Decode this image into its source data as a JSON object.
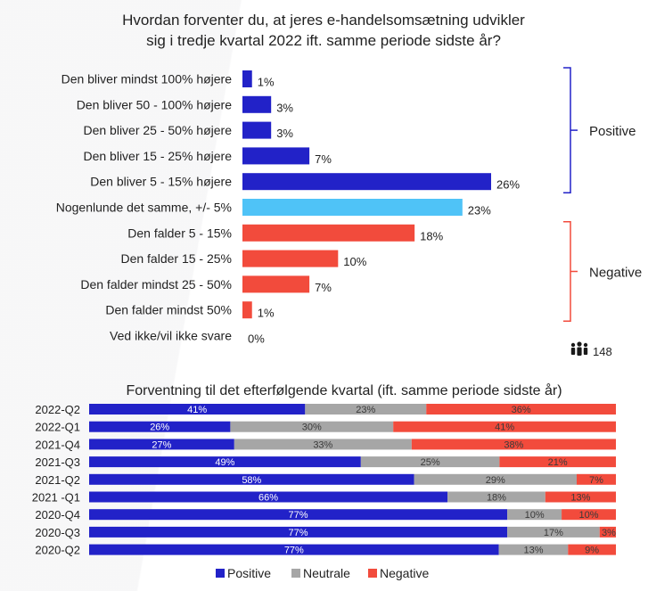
{
  "colors": {
    "positive": "#2222c8",
    "neutral_same": "#4fc3f7",
    "negative": "#f24b3c",
    "neutral_grey": "#a6a6a6",
    "bracket": "#2222c8",
    "bracket_neg": "#f24b3c",
    "text": "#222222"
  },
  "respondents": {
    "icon": "people-icon",
    "count": "148"
  },
  "chart_data": [
    {
      "type": "bar",
      "orientation": "horizontal",
      "title": "Hvordan forventer du, at jeres e-handelsomsætning udvikler sig i tredje kvartal 2022 ift. samme periode sidste år?",
      "title_lines": [
        "Hvordan forventer du, at jeres e-handelsomsætning udvikler",
        "sig i tredje kvartal 2022 ift. samme periode sidste år?"
      ],
      "categories": [
        "Den bliver mindst 100% højere",
        "Den bliver 50 - 100% højere",
        "Den bliver 25 - 50% højere",
        "Den bliver 15 - 25% højere",
        "Den bliver 5 - 15% højere",
        "Nogenlunde det samme, +/- 5%",
        "Den falder 5 - 15%",
        "Den falder 15 - 25%",
        "Den falder mindst 25 - 50%",
        "Den falder mindst 50%",
        "Ved ikke/vil ikke svare"
      ],
      "values": [
        1,
        3,
        3,
        7,
        26,
        23,
        18,
        10,
        7,
        1,
        0
      ],
      "value_labels": [
        "1%",
        "3%",
        "3%",
        "7%",
        "26%",
        "23%",
        "18%",
        "10%",
        "7%",
        "1%",
        "0%"
      ],
      "groups": [
        {
          "label": "Positive",
          "from": 0,
          "to": 4
        },
        {
          "label": "Negative",
          "from": 6,
          "to": 9
        }
      ],
      "bar_colors": [
        "positive",
        "positive",
        "positive",
        "positive",
        "positive",
        "neutral_same",
        "negative",
        "negative",
        "negative",
        "negative",
        "negative"
      ],
      "xlim": [
        0,
        26
      ]
    },
    {
      "type": "bar",
      "orientation": "horizontal",
      "stacked": true,
      "title": "Forventning til det efterfølgende kvartal (ift. samme periode sidste år)",
      "categories": [
        "2022-Q2",
        "2022-Q1",
        "2021-Q4",
        "2021-Q3",
        "2021-Q2",
        "2021 -Q1",
        "2020-Q4",
        "2020-Q3",
        "2020-Q2"
      ],
      "series": [
        {
          "name": "Positive",
          "values": [
            41,
            26,
            27,
            49,
            58,
            66,
            77,
            77,
            77
          ],
          "labels": [
            "41%",
            "26%",
            "27%",
            "49%",
            "58%",
            "66%",
            "77%",
            "77%",
            "77%"
          ]
        },
        {
          "name": "Neutrale",
          "values": [
            23,
            30,
            33,
            25,
            29,
            18,
            10,
            17,
            13
          ],
          "labels": [
            "23%",
            "30%",
            "33%",
            "25%",
            "29%",
            "18%",
            "10%",
            "17%",
            "13%"
          ]
        },
        {
          "name": "Negative",
          "values": [
            36,
            41,
            38,
            21,
            7,
            13,
            10,
            3,
            9
          ],
          "labels": [
            "36%",
            "41%",
            "38%",
            "21%",
            "7%",
            "13%",
            "10%",
            "3%",
            "9%"
          ]
        }
      ],
      "legend": [
        "Positive",
        "Neutrale",
        "Negative"
      ],
      "legend_position": "bottom",
      "xlim": [
        0,
        100
      ]
    }
  ]
}
